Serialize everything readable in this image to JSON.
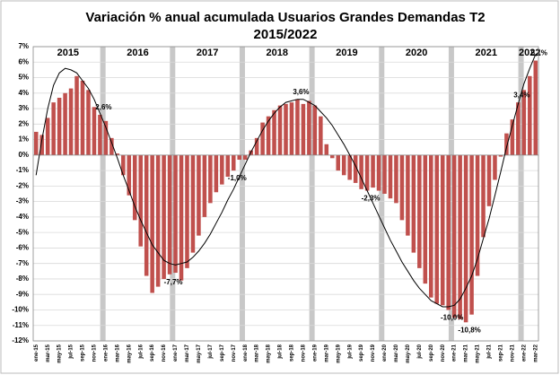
{
  "chart_data": {
    "type": "bar",
    "title": "Variación % anual acumulada Usuarios Grandes Demandas T2",
    "subtitle": "2015/2022",
    "years": [
      "2015",
      "2016",
      "2017",
      "2018",
      "2019",
      "2020",
      "2021",
      "2022"
    ],
    "categories": [
      "ene-15",
      null,
      "mar-15",
      null,
      "may-15",
      null,
      "jul-15",
      null,
      "sep-15",
      null,
      "nov-15",
      null,
      "ene-16",
      null,
      "mar-16",
      null,
      "may-16",
      null,
      "jul-16",
      null,
      "sep-16",
      null,
      "nov-16",
      null,
      "ene-17",
      null,
      "mar-17",
      null,
      "may-17",
      null,
      "jul-17",
      null,
      "sep-17",
      null,
      "nov-17",
      null,
      "ene-18",
      null,
      "mar-18",
      null,
      "may-18",
      null,
      "jul-18",
      null,
      "sep-18",
      null,
      "nov-18",
      null,
      "ene-19",
      null,
      "mar-19",
      null,
      "may-19",
      null,
      "jul-19",
      null,
      "sep-19",
      null,
      "nov-19",
      null,
      "ene-20",
      null,
      "mar-20",
      null,
      "may-20",
      null,
      "jul-20",
      null,
      "sep-20",
      null,
      "nov-20",
      null,
      "ene-21",
      null,
      "mar-21",
      null,
      "may-21",
      null,
      "jul-21",
      null,
      "sep-21",
      null,
      "nov-21",
      null,
      "ene-22",
      null,
      "mar-22"
    ],
    "values": [
      1.5,
      1.3,
      2.4,
      3.4,
      3.7,
      4.0,
      4.3,
      5.1,
      4.8,
      4.2,
      3.1,
      2.6,
      2.2,
      1.1,
      0.1,
      -1.3,
      -2.6,
      -4.2,
      -5.9,
      -7.8,
      -8.9,
      -8.5,
      -8.0,
      -7.7,
      -7.6,
      -8.1,
      -7.3,
      -6.3,
      -5.2,
      -4.0,
      -3.1,
      -2.4,
      -1.9,
      -1.4,
      -1.0,
      -0.3,
      -0.3,
      0.3,
      1.1,
      2.1,
      2.5,
      2.9,
      3.2,
      3.3,
      3.4,
      3.6,
      3.3,
      3.5,
      3.2,
      2.5,
      0.7,
      -0.2,
      -1.0,
      -1.3,
      -1.6,
      -1.8,
      -2.2,
      -2.3,
      -2.1,
      -2.3,
      -2.5,
      -2.8,
      -3.1,
      -4.2,
      -5.2,
      -6.3,
      -7.3,
      -8.3,
      -9.2,
      -9.6,
      -9.7,
      -10.0,
      -10.5,
      -10.6,
      -10.8,
      -10.3,
      -7.8,
      -5.3,
      -3.3,
      -1.6,
      -0.1,
      1.4,
      2.3,
      3.4,
      4.2,
      5.1,
      6.1
    ],
    "value_labels": [
      null,
      null,
      null,
      null,
      null,
      null,
      null,
      null,
      null,
      null,
      null,
      "2,6%",
      null,
      null,
      null,
      null,
      null,
      null,
      null,
      null,
      null,
      null,
      null,
      "-7,7%",
      null,
      null,
      null,
      null,
      null,
      null,
      null,
      null,
      null,
      null,
      "-1,0%",
      null,
      null,
      null,
      null,
      null,
      null,
      null,
      null,
      null,
      null,
      "3,6%",
      null,
      null,
      null,
      null,
      null,
      null,
      null,
      null,
      null,
      null,
      null,
      "-2,3%",
      null,
      null,
      null,
      null,
      null,
      null,
      null,
      null,
      null,
      null,
      null,
      null,
      null,
      "-10,0%",
      null,
      null,
      "-10,8%",
      null,
      null,
      null,
      null,
      null,
      null,
      null,
      null,
      "3,4%",
      null,
      null,
      "6,1%"
    ],
    "color": "#c0504d",
    "line_values": [
      -1.3,
      1.0,
      3.0,
      4.5,
      5.3,
      5.6,
      5.5,
      5.3,
      4.8,
      4.3,
      3.6,
      2.7,
      1.8,
      0.8,
      -0.2,
      -1.3,
      -2.3,
      -3.3,
      -4.2,
      -5.0,
      -5.8,
      -6.3,
      -6.8,
      -7.0,
      -7.1,
      -7.0,
      -6.9,
      -6.6,
      -6.2,
      -5.7,
      -5.1,
      -4.4,
      -3.7,
      -2.9,
      -2.2,
      -1.4,
      -0.6,
      0.2,
      0.9,
      1.6,
      2.2,
      2.7,
      3.1,
      3.4,
      3.5,
      3.6,
      3.6,
      3.4,
      3.2,
      2.8,
      2.4,
      1.9,
      1.3,
      0.7,
      0.0,
      -0.7,
      -1.5,
      -2.3,
      -3.1,
      -3.9,
      -4.7,
      -5.5,
      -6.2,
      -6.9,
      -7.5,
      -8.1,
      -8.6,
      -9.0,
      -9.4,
      -9.6,
      -9.8,
      -9.8,
      -9.7,
      -9.3,
      -8.6,
      -7.8,
      -6.7,
      -5.4,
      -4.1,
      -2.6,
      -1.1,
      0.5,
      1.9,
      3.3,
      4.6,
      5.6,
      6.5
    ],
    "line_color": "#000000",
    "ylim": [
      -12,
      7
    ],
    "yticks": [
      {
        "value": -12,
        "label": "-12%"
      },
      {
        "value": -11,
        "label": "-11%"
      },
      {
        "value": -10,
        "label": "-10%"
      },
      {
        "value": -9,
        "label": "-9%"
      },
      {
        "value": -8,
        "label": "-8%"
      },
      {
        "value": -7,
        "label": "-7%"
      },
      {
        "value": -6,
        "label": "-6%"
      },
      {
        "value": -5,
        "label": "-5%"
      },
      {
        "value": -4,
        "label": "-4%"
      },
      {
        "value": -3,
        "label": "-3%"
      },
      {
        "value": -2,
        "label": "-2%"
      },
      {
        "value": -1,
        "label": "-1%"
      },
      {
        "value": 0,
        "label": "0%"
      },
      {
        "value": 1,
        "label": "1%"
      },
      {
        "value": 2,
        "label": "2%"
      },
      {
        "value": 3,
        "label": "3%"
      },
      {
        "value": 4,
        "label": "4%"
      },
      {
        "value": 5,
        "label": "5%"
      },
      {
        "value": 6,
        "label": "6%"
      },
      {
        "value": 7,
        "label": "7%"
      }
    ],
    "grid": true
  }
}
